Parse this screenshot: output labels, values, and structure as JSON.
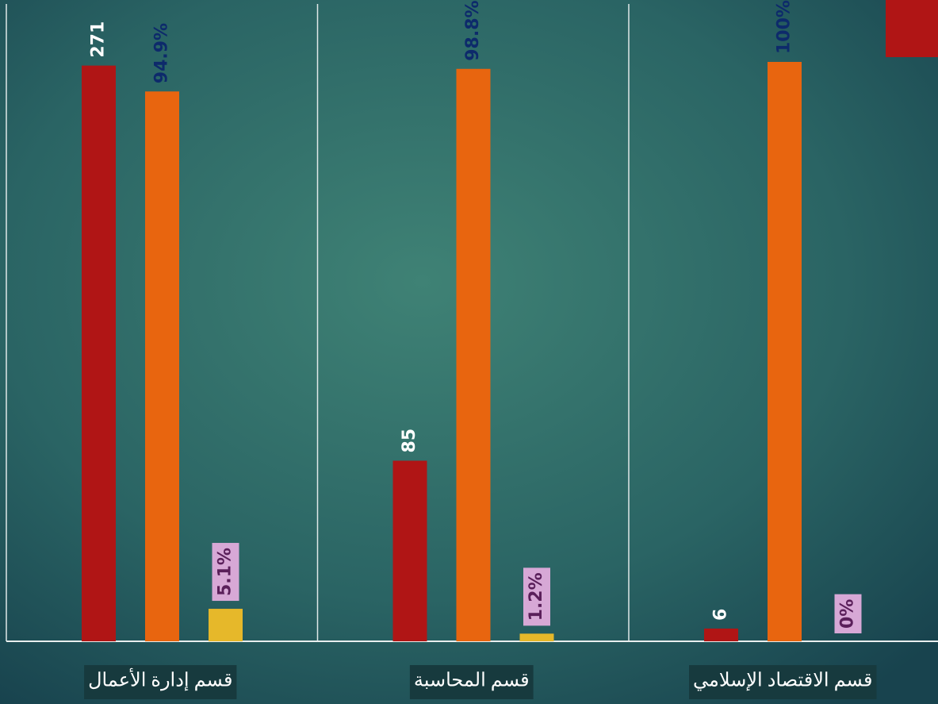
{
  "chart_data": {
    "type": "bar",
    "categories": [
      "قسم إدارة الأعمال",
      "قسم المحاسبة",
      "قسم الاقتصاد الإسلامي"
    ],
    "series": [
      {
        "color": "#b01515",
        "label_color": "#ffffff",
        "values": [
          271,
          85,
          6
        ],
        "value_labels": [
          "271",
          "85",
          "6"
        ],
        "ylim": [
          0,
          300
        ]
      },
      {
        "color": "#e8650f",
        "label_color": "#0d2a6b",
        "values": [
          94.9,
          98.8,
          100
        ],
        "value_labels": [
          "94.9%",
          "98.8%",
          "100%"
        ],
        "ylim": [
          0,
          110
        ]
      },
      {
        "color": "#e6b82a",
        "label_color": "#5a1f5a",
        "label_box": "#d7a8d6",
        "values": [
          5.1,
          1.2,
          0
        ],
        "value_labels": [
          "5.1%",
          "1.2%",
          "0%"
        ],
        "ylim": [
          0,
          100
        ]
      }
    ]
  }
}
